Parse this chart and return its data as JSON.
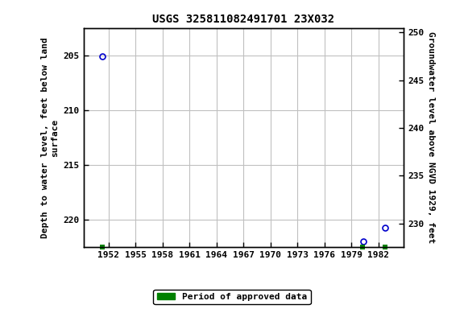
{
  "title": "USGS 325811082491701 23X032",
  "points": [
    {
      "year": 1951.3,
      "depth": 205.1
    },
    {
      "year": 1980.3,
      "depth": 222.0
    },
    {
      "year": 1982.7,
      "depth": 220.7
    }
  ],
  "green_markers": [
    {
      "year": 1951.3
    },
    {
      "year": 1980.2
    },
    {
      "year": 1982.7
    }
  ],
  "xlim": [
    1949.2,
    1984.8
  ],
  "ylim_left_bottom": 222.5,
  "ylim_left_top": 202.5,
  "ylim_right_bottom": 227.5,
  "ylim_right_top": 250.5,
  "xticks": [
    1952,
    1955,
    1958,
    1961,
    1964,
    1967,
    1970,
    1973,
    1976,
    1979,
    1982
  ],
  "yticks_left": [
    205,
    210,
    215,
    220
  ],
  "yticks_right": [
    230,
    235,
    240,
    245,
    250
  ],
  "ylabel_left": "Depth to water level, feet below land\nsurface",
  "ylabel_right": "Groundwater level above NGVD 1929, feet",
  "point_color": "#0000cc",
  "point_size": 5,
  "grid_color": "#c0c0c0",
  "bg_color": "#ffffff",
  "legend_label": "Period of approved data",
  "legend_color": "#008000",
  "title_fontsize": 10,
  "axis_fontsize": 8,
  "ylabel_fontsize": 8
}
